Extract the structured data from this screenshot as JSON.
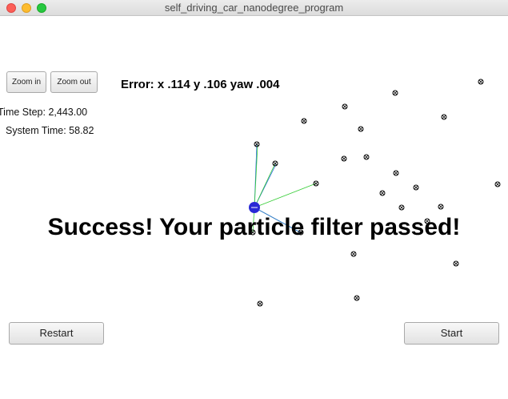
{
  "window": {
    "title": "self_driving_car_nanodegree_program"
  },
  "toolbar": {
    "zoom_in_label": "Zoom in",
    "zoom_out_label": "Zoom out"
  },
  "status": {
    "error_text": "Error: x .114 y .106 yaw .004",
    "time_step_text": "Time Step: 2,443.00",
    "system_time_text": "System Time: 58.82"
  },
  "message": {
    "success_text": "Success! Your particle filter passed!"
  },
  "controls": {
    "restart_label": "Restart",
    "start_label": "Start"
  },
  "colors": {
    "vehicle": "#2a2ad6",
    "observation_line_green": "#33cc33",
    "observation_line_blue": "#2a6adf",
    "landmark": "#000000"
  },
  "landmark_count": 27
}
